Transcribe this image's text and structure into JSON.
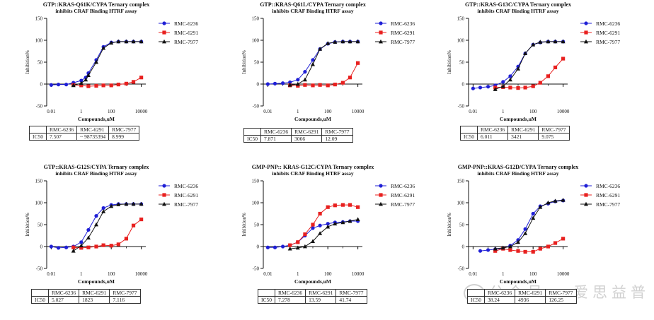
{
  "figure": {
    "y_axis_label": "Inhibition%",
    "x_axis_label": "Compounds,uM",
    "table_header": [
      "",
      "RMC-6236",
      "RMC-6291",
      "RMC-7977"
    ],
    "watermark": "公众号 · 爱思益普"
  },
  "legend": [
    {
      "name": "RMC-6236",
      "color": "#1f1fd6",
      "marker": "circle"
    },
    {
      "name": "RMC-6291",
      "color": "#e8201f",
      "marker": "square"
    },
    {
      "name": "RMC-7977",
      "color": "#111111",
      "marker": "triangle"
    }
  ],
  "chart_data": [
    {
      "type": "line",
      "title_line1": "GTP::KRAS-Q61K/CYPA Ternary complex",
      "title_line2": "inhibits CRAF Binding HTRF assay",
      "xscale": "log",
      "xlim": [
        0.005,
        20000
      ],
      "ylim": [
        -50,
        150
      ],
      "xticks": [
        {
          "v": 0.01,
          "label": "0.01"
        },
        {
          "v": 1,
          "label": "1"
        },
        {
          "v": 100,
          "label": "100"
        },
        {
          "v": 10000,
          "label": "10000"
        }
      ],
      "yticks": [
        -50,
        0,
        50,
        100,
        150
      ],
      "series": [
        {
          "name": "RMC-6236",
          "x": [
            0.01,
            0.03,
            0.1,
            0.3,
            1,
            2,
            3,
            10,
            30,
            100,
            300,
            1000,
            3000,
            10000
          ],
          "y": [
            -2,
            -1,
            -1,
            3,
            8,
            15,
            25,
            55,
            85,
            95,
            97,
            97,
            97,
            97
          ]
        },
        {
          "name": "RMC-6291",
          "x": [
            0.3,
            1,
            3,
            10,
            30,
            100,
            300,
            1000,
            3000,
            10000
          ],
          "y": [
            -2,
            -3,
            -5,
            -4,
            -3,
            -3,
            -1,
            1,
            5,
            15
          ]
        },
        {
          "name": "RMC-7977",
          "x": [
            0.3,
            1,
            2,
            3,
            10,
            30,
            100,
            300,
            1000,
            3000,
            10000
          ],
          "y": [
            -3,
            2,
            10,
            20,
            50,
            82,
            94,
            97,
            97,
            97,
            97
          ]
        }
      ],
      "ic50": [
        "7.507",
        "~ 98735394",
        "8.999"
      ]
    },
    {
      "type": "line",
      "title_line1": "GTP::KRAS-Q61L/CYPA Ternary complex",
      "title_line2": "inhibits CRAF Binding HTRF assay",
      "xscale": "log",
      "xlim": [
        0.005,
        20000
      ],
      "ylim": [
        -50,
        150
      ],
      "xticks": [
        {
          "v": 0.01,
          "label": "0.01"
        },
        {
          "v": 1,
          "label": "1"
        },
        {
          "v": 100,
          "label": "100"
        },
        {
          "v": 10000,
          "label": "10000"
        }
      ],
      "yticks": [
        -50,
        0,
        50,
        100,
        150
      ],
      "series": [
        {
          "name": "RMC-6236",
          "x": [
            0.01,
            0.03,
            0.1,
            0.3,
            1,
            3,
            10,
            30,
            100,
            300,
            1000,
            3000,
            10000
          ],
          "y": [
            0,
            1,
            2,
            4,
            10,
            28,
            55,
            80,
            92,
            96,
            97,
            97,
            97
          ]
        },
        {
          "name": "RMC-6291",
          "x": [
            0.3,
            1,
            3,
            10,
            30,
            100,
            300,
            1000,
            3000,
            10000
          ],
          "y": [
            -3,
            -4,
            -2,
            -3,
            -2,
            -3,
            -1,
            3,
            15,
            48
          ]
        },
        {
          "name": "RMC-7977",
          "x": [
            0.3,
            1,
            3,
            10,
            30,
            100,
            300,
            1000,
            3000,
            10000
          ],
          "y": [
            -2,
            0,
            10,
            45,
            80,
            93,
            96,
            97,
            97,
            97
          ]
        }
      ],
      "ic50": [
        "7.871",
        "3066",
        "12.09"
      ]
    },
    {
      "type": "line",
      "title_line1": "GTP::KRAS-G13C/CYPA Ternary complex",
      "title_line2": "inhibits CRAF Binding HTRF assay",
      "xscale": "log",
      "xlim": [
        0.005,
        20000
      ],
      "ylim": [
        -50,
        150
      ],
      "xticks": [
        {
          "v": 0.01,
          "label": "0.01"
        },
        {
          "v": 1,
          "label": "1"
        },
        {
          "v": 100,
          "label": "100"
        },
        {
          "v": 10000,
          "label": "10000"
        }
      ],
      "yticks": [
        -50,
        0,
        50,
        100,
        150
      ],
      "series": [
        {
          "name": "RMC-6236",
          "x": [
            0.01,
            0.03,
            0.1,
            0.3,
            1,
            3,
            10,
            30,
            100,
            300,
            1000,
            3000,
            10000
          ],
          "y": [
            -10,
            -8,
            -6,
            -3,
            5,
            18,
            40,
            70,
            90,
            95,
            97,
            97,
            97
          ]
        },
        {
          "name": "RMC-6291",
          "x": [
            0.3,
            1,
            3,
            10,
            30,
            100,
            300,
            1000,
            3000,
            10000
          ],
          "y": [
            -8,
            -7,
            -8,
            -9,
            -8,
            -5,
            3,
            18,
            38,
            58
          ]
        },
        {
          "name": "RMC-7977",
          "x": [
            0.3,
            1,
            3,
            10,
            30,
            100,
            300,
            1000,
            3000,
            10000
          ],
          "y": [
            -12,
            -5,
            10,
            35,
            70,
            90,
            96,
            97,
            97,
            97
          ]
        }
      ],
      "ic50": [
        "6.011",
        "3421",
        "9.075"
      ]
    },
    {
      "type": "line",
      "title_line1": "GTP::KRAS-G12S/CYPA Ternary complex",
      "title_line2": "inhibits CRAF Binding HTRF assay",
      "xscale": "log",
      "xlim": [
        0.005,
        20000
      ],
      "ylim": [
        -50,
        150
      ],
      "xticks": [
        {
          "v": 0.01,
          "label": "0.01"
        },
        {
          "v": 1,
          "label": "1"
        },
        {
          "v": 100,
          "label": "100"
        },
        {
          "v": 10000,
          "label": "10000"
        }
      ],
      "yticks": [
        -50,
        0,
        50,
        100,
        150
      ],
      "series": [
        {
          "name": "RMC-6236",
          "x": [
            0.01,
            0.03,
            0.1,
            0.3,
            1,
            3,
            10,
            30,
            100,
            300,
            1000,
            3000,
            10000
          ],
          "y": [
            0,
            -3,
            -2,
            0,
            10,
            38,
            70,
            88,
            95,
            97,
            97,
            97,
            97
          ]
        },
        {
          "name": "RMC-6291",
          "x": [
            0.3,
            1,
            3,
            10,
            30,
            100,
            300,
            1000,
            3000,
            10000
          ],
          "y": [
            -2,
            -3,
            -2,
            0,
            3,
            2,
            5,
            18,
            48,
            62
          ]
        },
        {
          "name": "RMC-7977",
          "x": [
            0.3,
            1,
            3,
            10,
            30,
            100,
            300,
            1000,
            3000,
            10000
          ],
          "y": [
            -10,
            2,
            20,
            50,
            80,
            92,
            96,
            97,
            97,
            97
          ]
        }
      ],
      "ic50": [
        "5.027",
        "1823",
        "7.116"
      ]
    },
    {
      "type": "line",
      "title_line1": "GMP-PNP:: KRAS-G12C/CYPA Ternary complex",
      "title_line2": "inhibits CRAF Binding HTRF assay",
      "xscale": "log",
      "xlim": [
        0.005,
        20000
      ],
      "ylim": [
        -50,
        150
      ],
      "xticks": [
        {
          "v": 0.01,
          "label": "0.01"
        },
        {
          "v": 1,
          "label": "1"
        },
        {
          "v": 100,
          "label": "100"
        },
        {
          "v": 10000,
          "label": "10000"
        }
      ],
      "yticks": [
        -50,
        0,
        50,
        100,
        150
      ],
      "series": [
        {
          "name": "RMC-6236",
          "x": [
            0.01,
            0.03,
            0.1,
            0.3,
            1,
            3,
            10,
            30,
            100,
            300,
            1000,
            3000,
            10000
          ],
          "y": [
            -2,
            -2,
            0,
            3,
            10,
            25,
            42,
            48,
            52,
            55,
            56,
            58,
            58
          ]
        },
        {
          "name": "RMC-6291",
          "x": [
            0.3,
            1,
            3,
            10,
            30,
            100,
            300,
            1000,
            3000,
            10000
          ],
          "y": [
            3,
            10,
            28,
            50,
            75,
            90,
            94,
            95,
            95,
            90
          ]
        },
        {
          "name": "RMC-7977",
          "x": [
            0.3,
            1,
            3,
            10,
            30,
            100,
            300,
            1000,
            3000,
            10000
          ],
          "y": [
            -5,
            -3,
            0,
            12,
            30,
            45,
            52,
            55,
            58,
            62
          ]
        }
      ],
      "ic50": [
        "7.278",
        "13.59",
        "41.74"
      ]
    },
    {
      "type": "line",
      "title_line1": "GMP-PNP::KRAS-G12D/CYPA Ternary complex",
      "title_line2": "inhibits CRAF Binding HTRF assay",
      "xscale": "log",
      "xlim": [
        0.005,
        20000
      ],
      "ylim": [
        -50,
        150
      ],
      "xticks": [
        {
          "v": 0.01,
          "label": "0.01"
        },
        {
          "v": 1,
          "label": "1"
        },
        {
          "v": 100,
          "label": "100"
        },
        {
          "v": 10000,
          "label": "10000"
        }
      ],
      "yticks": [
        -50,
        0,
        50,
        100,
        150
      ],
      "series": [
        {
          "name": "RMC-6236",
          "x": [
            0.03,
            0.1,
            0.3,
            1,
            3,
            10,
            30,
            100,
            300,
            1000,
            3000,
            10000
          ],
          "y": [
            -10,
            -8,
            -6,
            -4,
            2,
            15,
            40,
            75,
            92,
            98,
            103,
            105
          ]
        },
        {
          "name": "RMC-6291",
          "x": [
            0.3,
            1,
            3,
            10,
            30,
            100,
            300,
            1000,
            3000,
            10000
          ],
          "y": [
            -10,
            -5,
            -8,
            -10,
            -12,
            -12,
            -5,
            0,
            8,
            18
          ]
        },
        {
          "name": "RMC-7977",
          "x": [
            0.3,
            1,
            3,
            10,
            30,
            100,
            300,
            1000,
            3000,
            10000
          ],
          "y": [
            -5,
            -3,
            0,
            10,
            30,
            65,
            90,
            100,
            104,
            106
          ]
        }
      ],
      "ic50": [
        "38.24",
        "4936",
        "126.25"
      ]
    }
  ]
}
